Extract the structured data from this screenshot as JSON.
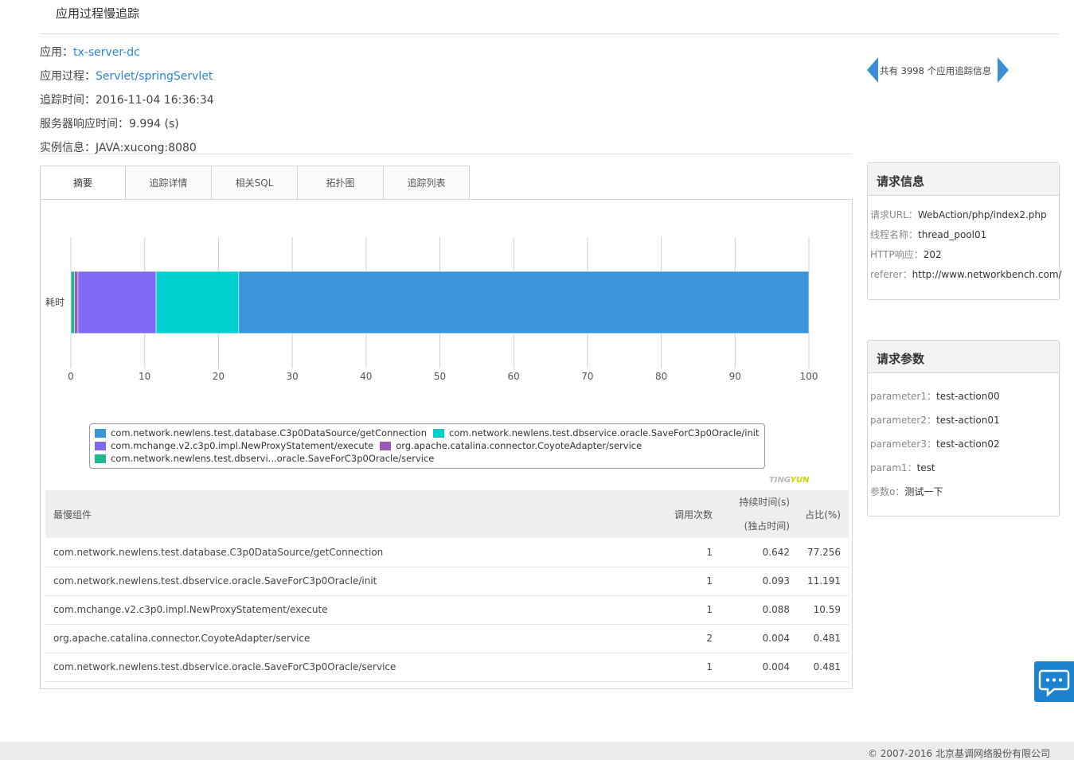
{
  "page": {
    "title": "应用过程慢追踪"
  },
  "info": {
    "app_label": "应用：",
    "app_value": "tx-server-dc",
    "process_label": "应用过程：",
    "process_value": "Servlet/springServlet",
    "time_label": "追踪时间：",
    "time_value": "2016-11-04 16:36:34",
    "response_label": "服务器响应时间：",
    "response_value": "9.994 (s)",
    "instance_label": "实例信息：",
    "instance_value": "JAVA:xucong:8080"
  },
  "nav": {
    "text": "共有 3998 个应用追踪信息"
  },
  "tabs": [
    {
      "label": "摘要"
    },
    {
      "label": "追踪详情"
    },
    {
      "label": "相关SQL"
    },
    {
      "label": "拓扑图"
    },
    {
      "label": "追踪列表"
    }
  ],
  "chart_data": {
    "type": "bar",
    "orientation": "horizontal",
    "stacked": true,
    "categories": [
      "耗时"
    ],
    "xlim": [
      0,
      100
    ],
    "xticks": [
      "0",
      "10",
      "20",
      "30",
      "40",
      "50",
      "60",
      "70",
      "80",
      "90",
      "100"
    ],
    "grid": true,
    "legend_position": "bottom",
    "series": [
      {
        "name": "com.network.newlens.test.dbservi...oracle.SaveForC3p0Oracle/service",
        "values": [
          0.481
        ],
        "color": "#21b890"
      },
      {
        "name": "org.apache.catalina.connector.CoyoteAdapter/service",
        "values": [
          0.481
        ],
        "color": "#9b59b6"
      },
      {
        "name": "com.mchange.v2.c3p0.impl.NewProxyStatement/execute",
        "values": [
          10.59
        ],
        "color": "#8069f2"
      },
      {
        "name": "com.network.newlens.test.dbservice.oracle.SaveForC3p0Oracle/init",
        "values": [
          11.191
        ],
        "color": "#00cfcf"
      },
      {
        "name": "com.network.newlens.test.database.C3p0DataSource/getConnection",
        "values": [
          77.256
        ],
        "color": "#3a96d8"
      }
    ],
    "legend_order": [
      [
        "com.network.newlens.test.database.C3p0DataSource/getConnection",
        "com.network.newlens.test.dbservice.oracle.SaveForC3p0Oracle/init"
      ],
      [
        "com.mchange.v2.c3p0.impl.NewProxyStatement/execute",
        "org.apache.catalina.connector.CoyoteAdapter/service"
      ],
      [
        "com.network.newlens.test.dbservi...oracle.SaveForC3p0Oracle/service"
      ]
    ]
  },
  "watermark": {
    "a": "TING",
    "b": "YUN"
  },
  "table": {
    "headers": {
      "component": "最慢组件",
      "calls": "调用次数",
      "duration": "持续时间(s)",
      "duration_sub": "(独占时间)",
      "percent": "占比(%)"
    },
    "rows": [
      {
        "component": "com.network.newlens.test.database.C3p0DataSource/getConnection",
        "calls": "1",
        "duration": "0.642",
        "percent": "77.256"
      },
      {
        "component": "com.network.newlens.test.dbservice.oracle.SaveForC3p0Oracle/init",
        "calls": "1",
        "duration": "0.093",
        "percent": "11.191"
      },
      {
        "component": "com.mchange.v2.c3p0.impl.NewProxyStatement/execute",
        "calls": "1",
        "duration": "0.088",
        "percent": "10.59"
      },
      {
        "component": "org.apache.catalina.connector.CoyoteAdapter/service",
        "calls": "2",
        "duration": "0.004",
        "percent": "0.481"
      },
      {
        "component": "com.network.newlens.test.dbservice.oracle.SaveForC3p0Oracle/service",
        "calls": "1",
        "duration": "0.004",
        "percent": "0.481"
      }
    ]
  },
  "request_info": {
    "title": "请求信息",
    "items": [
      {
        "key": "请求URL：",
        "value": "WebAction/php/index2.php"
      },
      {
        "key": "线程名称：",
        "value": "thread_pool01"
      },
      {
        "key": "HTTP响应：",
        "value": "202"
      },
      {
        "key": "referer：",
        "value": "http://www.networkbench.com/"
      }
    ]
  },
  "request_params": {
    "title": "请求参数",
    "items": [
      {
        "key": "parameter1：",
        "value": "test-action00"
      },
      {
        "key": "parameter2：",
        "value": "test-action01"
      },
      {
        "key": "parameter3：",
        "value": "test-action02"
      },
      {
        "key": "param1：",
        "value": "test"
      },
      {
        "key": "参数o：",
        "value": "测试一下"
      }
    ]
  },
  "icons": {
    "chat": "chat-bubble-icon",
    "prev": "arrow-left-icon",
    "next": "arrow-right-icon"
  },
  "footer": {
    "text": "© 2007-2016  北京基调网络股份有限公司"
  }
}
